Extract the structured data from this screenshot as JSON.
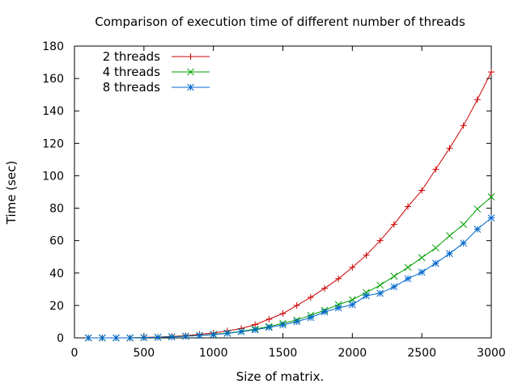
{
  "chart_data": {
    "type": "line",
    "title": "Comparison of execution time of different number of threads",
    "xlabel": "Size of matrix.",
    "ylabel": "Time (sec)",
    "xlim": [
      0,
      3000
    ],
    "ylim": [
      0,
      180
    ],
    "xticks": [
      0,
      500,
      1000,
      1500,
      2000,
      2500,
      3000
    ],
    "yticks": [
      0,
      20,
      40,
      60,
      80,
      100,
      120,
      140,
      160,
      180
    ],
    "grid": false,
    "legend_position": "top-left",
    "x": [
      100,
      200,
      300,
      400,
      500,
      600,
      700,
      800,
      900,
      1000,
      1100,
      1200,
      1300,
      1400,
      1500,
      1600,
      1700,
      1800,
      1900,
      2000,
      2100,
      2200,
      2300,
      2400,
      2500,
      2600,
      2700,
      2800,
      2900,
      3000
    ],
    "series": [
      {
        "name": "2 threads",
        "color": "#cc0000",
        "marker": "plus",
        "values": [
          0,
          0,
          0,
          0,
          0.3,
          0.5,
          0.9,
          1.4,
          2.2,
          3.0,
          4.3,
          5.8,
          8.2,
          11.5,
          15.0,
          20.0,
          25.0,
          30.5,
          36.5,
          43.5,
          51.0,
          60.0,
          70.0,
          81.0,
          91.0,
          104.0,
          117.0,
          131.0,
          147.0,
          164.0
        ]
      },
      {
        "name": "4 threads",
        "color": "#00a000",
        "marker": "cross",
        "values": [
          0,
          0,
          0,
          0,
          0.2,
          0.4,
          0.7,
          1.1,
          1.6,
          2.2,
          3.0,
          4.0,
          5.5,
          7.0,
          9.0,
          11.0,
          14.0,
          17.0,
          20.5,
          23.5,
          28.0,
          32.5,
          38.0,
          43.5,
          49.5,
          55.5,
          63.0,
          70.0,
          79.5,
          87.0
        ]
      },
      {
        "name": "8 threads",
        "color": "#0066cc",
        "marker": "star",
        "values": [
          0,
          0,
          0,
          0,
          0.2,
          0.3,
          0.6,
          1.0,
          1.5,
          2.0,
          2.8,
          3.8,
          5.0,
          6.5,
          8.0,
          10.0,
          12.5,
          16.0,
          18.5,
          20.5,
          26.0,
          27.5,
          31.5,
          36.5,
          40.5,
          46.0,
          52.0,
          58.5,
          67.0,
          74.0
        ]
      }
    ]
  }
}
